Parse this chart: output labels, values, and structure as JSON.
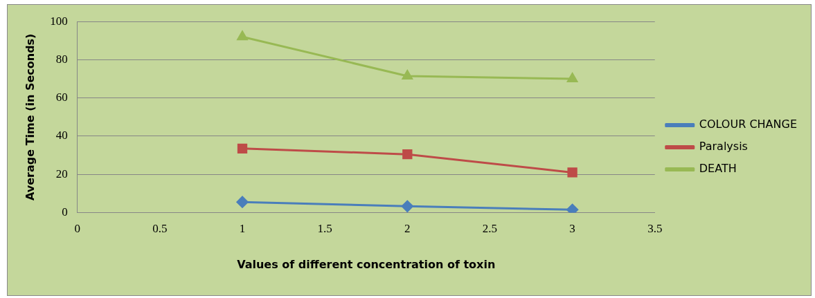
{
  "chart_data": {
    "type": "line",
    "xlabel": "Values of different concentration of toxin",
    "ylabel": "Average Time (in Seconds)",
    "x": [
      1,
      2,
      3
    ],
    "series": [
      {
        "name": "COLOUR CHANGE",
        "color": "#4a7ebb",
        "marker": "diamond",
        "values": [
          5.5,
          3.3,
          1.5
        ]
      },
      {
        "name": "Paralysis",
        "color": "#be4b48",
        "marker": "square",
        "values": [
          33.5,
          30.5,
          21
        ]
      },
      {
        "name": "DEATH",
        "color": "#98b954",
        "marker": "triangle",
        "values": [
          92,
          71.5,
          70
        ]
      }
    ],
    "xlim": [
      0,
      3.5
    ],
    "xticks": [
      0,
      0.5,
      1,
      1.5,
      2,
      2.5,
      3,
      3.5
    ],
    "ylim": [
      0,
      100
    ],
    "yticks": [
      0,
      20,
      40,
      60,
      80,
      100
    ],
    "grid": "y",
    "legend": "right"
  }
}
